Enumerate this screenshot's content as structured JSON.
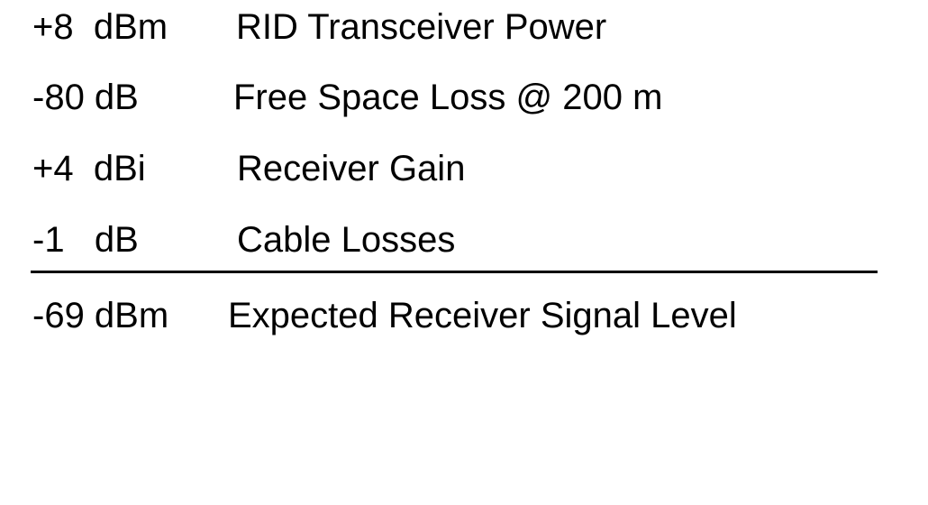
{
  "link_budget": {
    "items": [
      {
        "value": "+8  dBm",
        "label": "RID Transceiver Power"
      },
      {
        "value": "-80 dB",
        "label": "Free Space Loss @ 200 m"
      },
      {
        "value": "+4  dBi",
        "label": "Receiver Gain"
      },
      {
        "value": "-1   dB",
        "label": "Cable Losses"
      }
    ],
    "total": {
      "value": "-69 dBm",
      "label": "Expected Receiver Signal Level"
    }
  }
}
